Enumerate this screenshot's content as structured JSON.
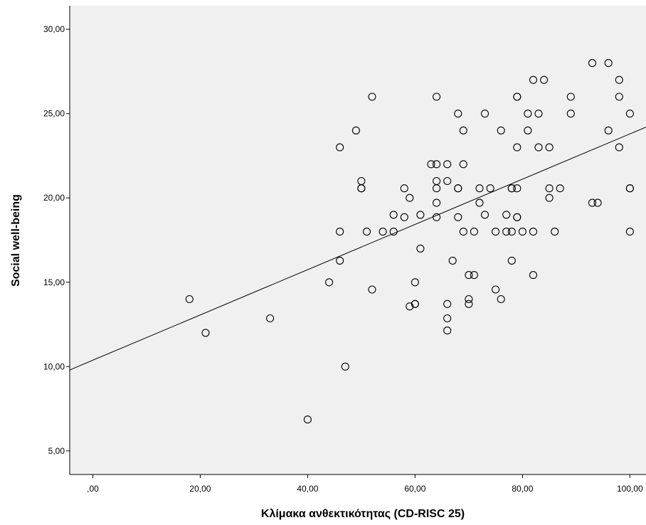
{
  "chart_data": {
    "type": "scatter",
    "title": "",
    "xlabel": "Κλίμακα ανθεκτικότητας (CD-RISC 25)",
    "ylabel": "Social well-being",
    "xlim": [
      -4.3,
      103
    ],
    "ylim": [
      3.6,
      31.4
    ],
    "x_ticks": [
      0,
      20,
      40,
      60,
      80,
      100
    ],
    "x_tick_labels": [
      ",00",
      "20,00",
      "40,00",
      "60,00",
      "80,00",
      "100,00"
    ],
    "y_ticks": [
      5,
      10,
      15,
      20,
      25,
      30
    ],
    "y_tick_labels": [
      "5,00",
      "10,00",
      "15,00",
      "20,00",
      "25,00",
      "30,00"
    ],
    "grid": false,
    "background": "#f0f0f0",
    "marker": "open-circle",
    "fit_line": {
      "type": "linear",
      "x": [
        -4.3,
        103
      ],
      "y": [
        9.8,
        24.2
      ]
    },
    "points": [
      [
        18,
        14
      ],
      [
        21,
        12
      ],
      [
        33,
        12.86
      ],
      [
        40,
        6.86
      ],
      [
        44,
        15
      ],
      [
        46,
        23
      ],
      [
        46,
        18
      ],
      [
        46,
        16.28
      ],
      [
        47,
        10
      ],
      [
        49,
        24
      ],
      [
        50,
        21
      ],
      [
        50,
        20.57
      ],
      [
        50,
        20.57
      ],
      [
        51,
        18
      ],
      [
        52,
        26
      ],
      [
        52,
        14.57
      ],
      [
        54,
        18
      ],
      [
        56,
        19
      ],
      [
        56,
        18
      ],
      [
        58,
        20.57
      ],
      [
        58,
        18.86
      ],
      [
        59,
        20
      ],
      [
        59,
        13.57
      ],
      [
        60,
        15
      ],
      [
        60,
        13.71
      ],
      [
        60,
        13.71
      ],
      [
        61,
        19
      ],
      [
        61,
        17
      ],
      [
        63,
        22
      ],
      [
        64,
        26
      ],
      [
        64,
        22
      ],
      [
        64,
        21
      ],
      [
        64,
        20.57
      ],
      [
        64,
        19.71
      ],
      [
        64,
        18.86
      ],
      [
        66,
        22
      ],
      [
        66,
        21
      ],
      [
        66,
        13.71
      ],
      [
        66,
        12.86
      ],
      [
        66,
        12.14
      ],
      [
        67,
        16.28
      ],
      [
        68,
        25
      ],
      [
        68,
        20.57
      ],
      [
        68,
        20.57
      ],
      [
        68,
        18.86
      ],
      [
        69,
        24
      ],
      [
        69,
        22
      ],
      [
        69,
        18
      ],
      [
        70,
        15.43
      ],
      [
        70,
        14
      ],
      [
        70,
        13.71
      ],
      [
        71,
        18
      ],
      [
        71,
        15.43
      ],
      [
        72,
        20.57
      ],
      [
        72,
        19.71
      ],
      [
        73,
        25
      ],
      [
        73,
        19
      ],
      [
        74,
        20.57
      ],
      [
        75,
        18
      ],
      [
        75,
        14.57
      ],
      [
        76,
        24
      ],
      [
        76,
        14
      ],
      [
        77,
        19
      ],
      [
        77,
        18
      ],
      [
        78,
        20.57
      ],
      [
        78,
        20.57
      ],
      [
        78,
        18
      ],
      [
        78,
        16.28
      ],
      [
        79,
        26
      ],
      [
        79,
        26
      ],
      [
        79,
        23
      ],
      [
        79,
        20.57
      ],
      [
        79,
        18.86
      ],
      [
        79,
        18.86
      ],
      [
        80,
        18
      ],
      [
        81,
        25
      ],
      [
        81,
        24
      ],
      [
        82,
        27
      ],
      [
        82,
        18
      ],
      [
        82,
        15.43
      ],
      [
        83,
        25
      ],
      [
        83,
        23
      ],
      [
        84,
        27
      ],
      [
        85,
        23
      ],
      [
        85,
        20.57
      ],
      [
        85,
        20
      ],
      [
        86,
        18
      ],
      [
        87,
        20.57
      ],
      [
        89,
        26
      ],
      [
        89,
        25
      ],
      [
        93,
        28
      ],
      [
        93,
        19.71
      ],
      [
        94,
        19.71
      ],
      [
        96,
        28
      ],
      [
        96,
        24
      ],
      [
        98,
        27
      ],
      [
        98,
        26
      ],
      [
        98,
        23
      ],
      [
        100,
        25
      ],
      [
        100,
        20.57
      ],
      [
        100,
        20.57
      ],
      [
        100,
        18
      ]
    ]
  }
}
